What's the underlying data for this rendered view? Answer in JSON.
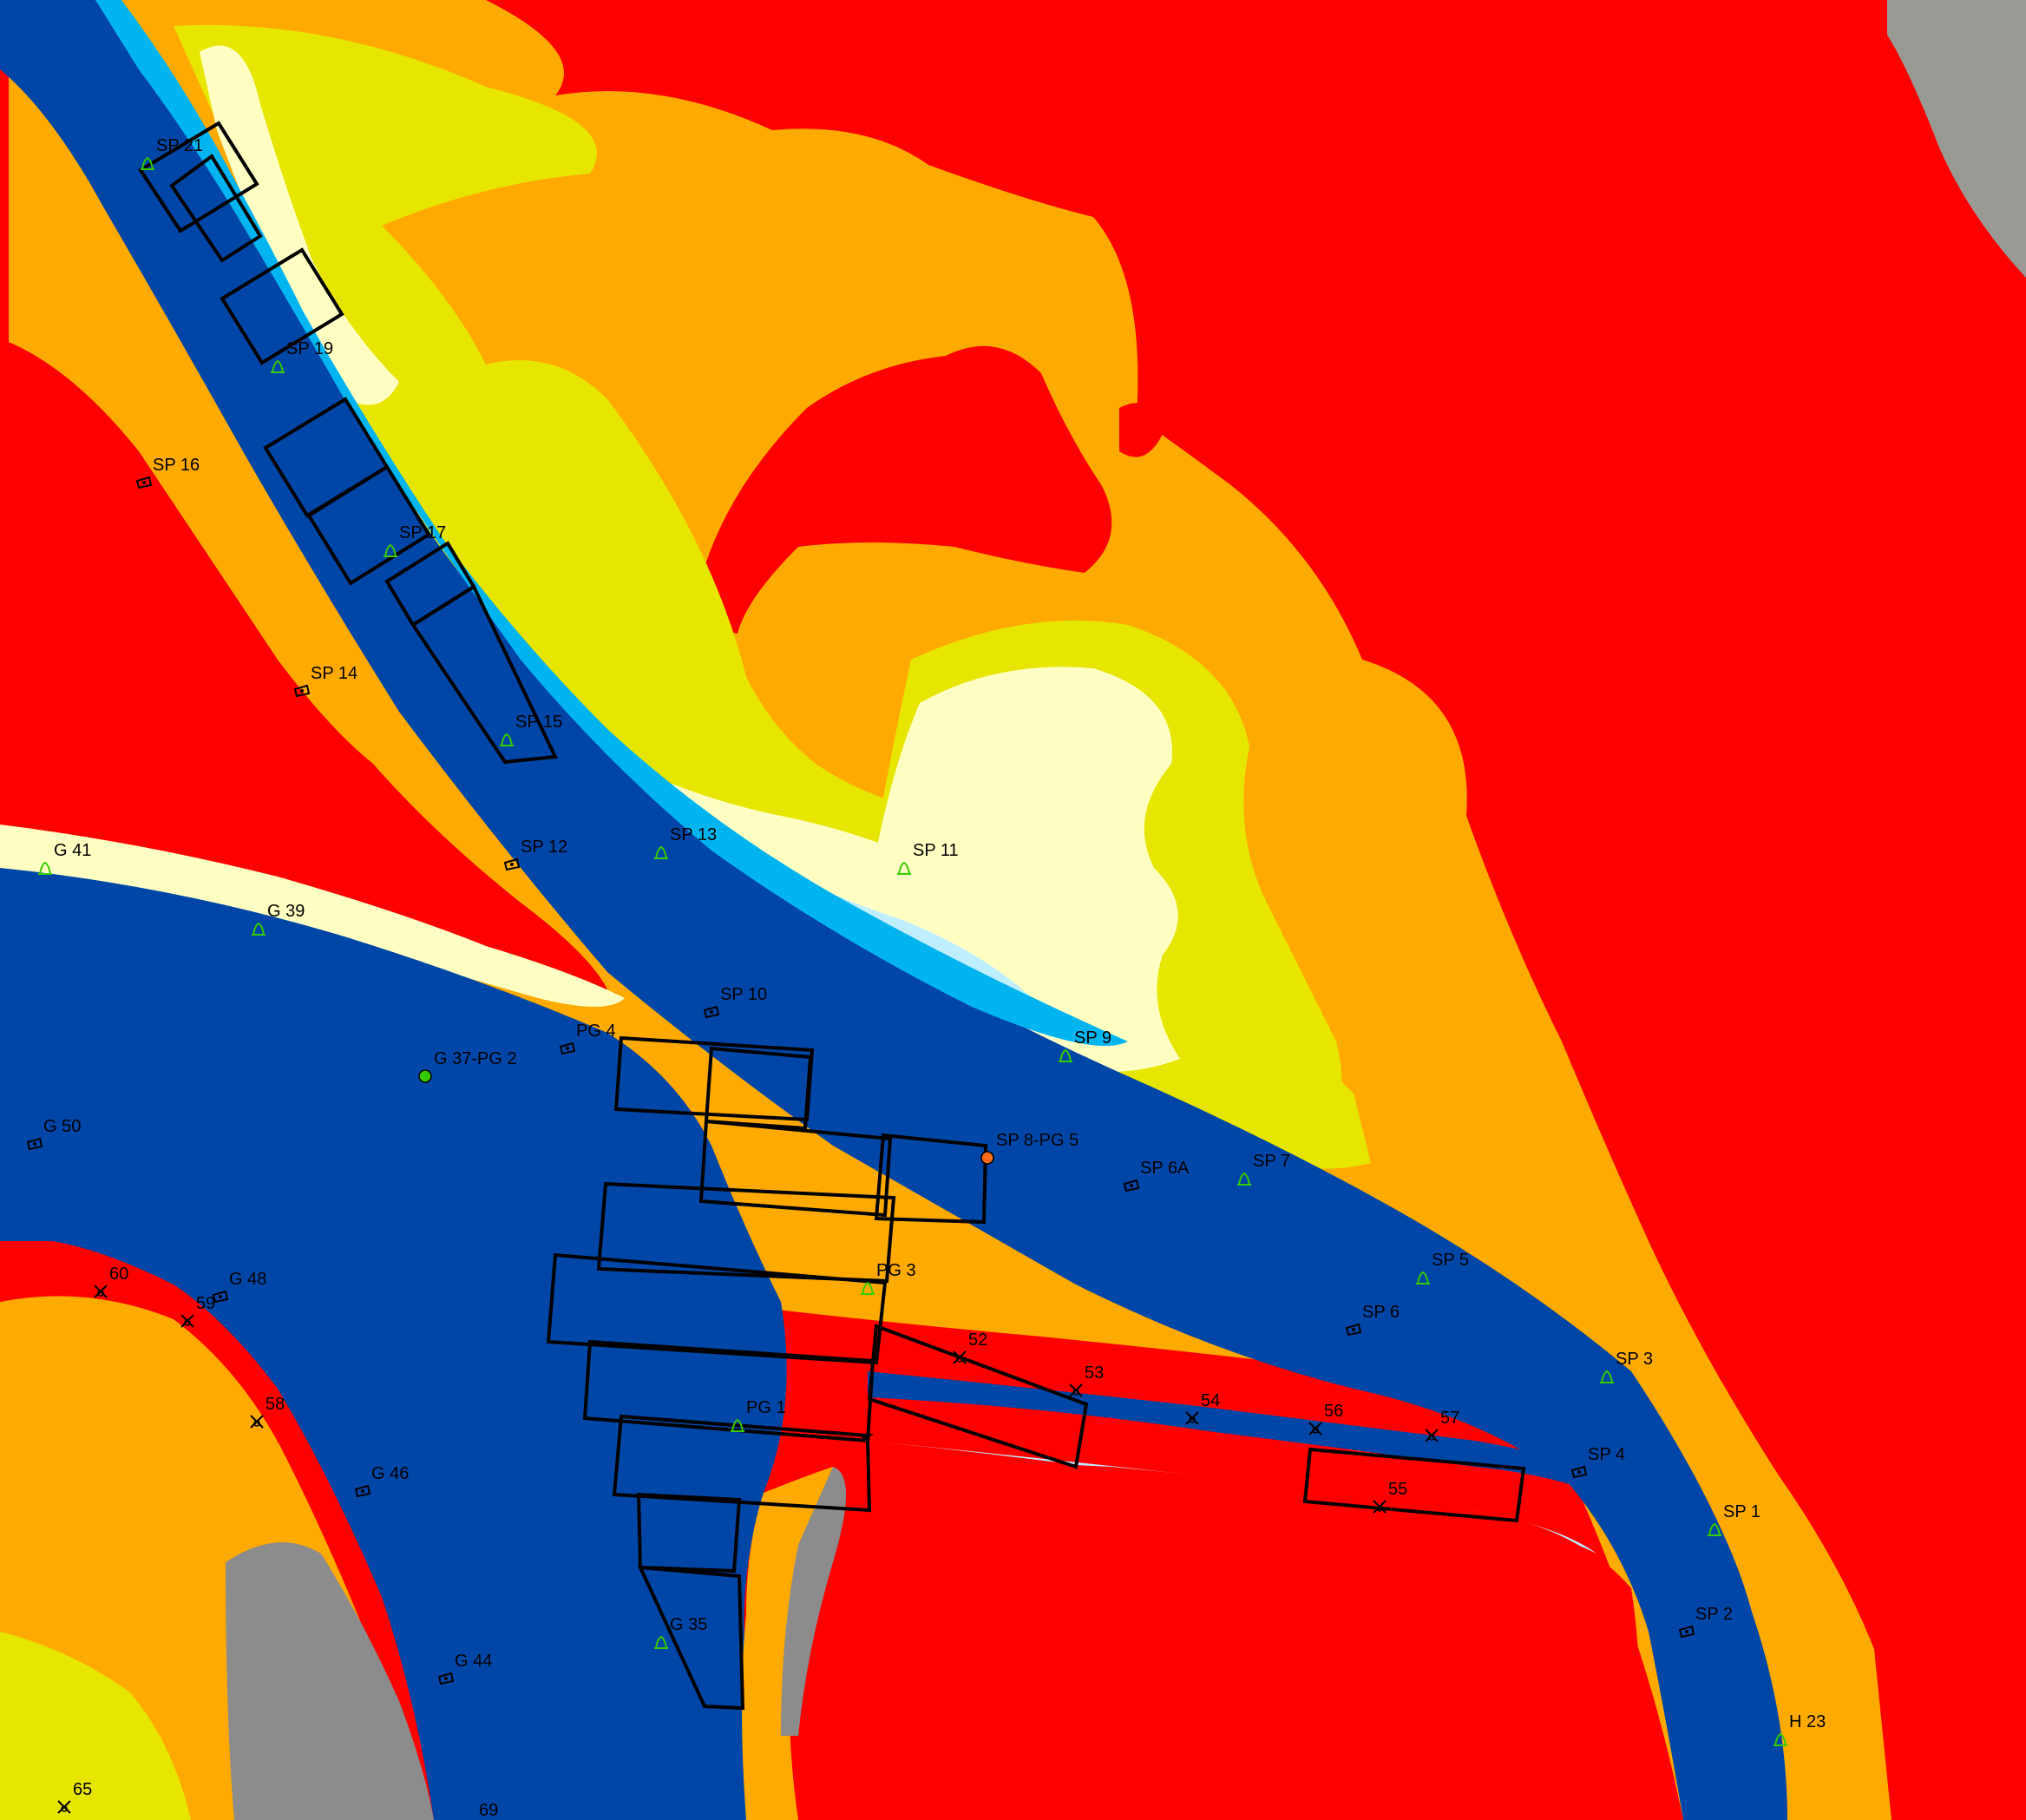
{
  "map": {
    "colors": {
      "deep_water": "#0046A6",
      "mid_water": "#00B4F0",
      "shallow_water": "#BFEFFF",
      "pale_flat": "#FFFFC4",
      "low_flat": "#E6E600",
      "mid_flat": "#FFAA00",
      "high_marsh": "#FF0000",
      "land_gray": "#8C8C8C",
      "marker_green": "#33CC00",
      "outline": "#000000"
    },
    "labels": [
      {
        "id": "sp21",
        "text": "SP 21",
        "icon": "green-bell-icon"
      },
      {
        "id": "sp19",
        "text": "SP 19",
        "icon": "green-bell-icon"
      },
      {
        "id": "sp16",
        "text": "SP 16",
        "icon": "black-boat-icon"
      },
      {
        "id": "sp17",
        "text": "SP 17",
        "icon": "green-bell-icon"
      },
      {
        "id": "sp14",
        "text": "SP 14",
        "icon": "black-boat-icon"
      },
      {
        "id": "sp15",
        "text": "SP 15",
        "icon": "green-bell-icon"
      },
      {
        "id": "sp13",
        "text": "SP 13",
        "icon": "green-bell-icon"
      },
      {
        "id": "sp12",
        "text": "SP 12",
        "icon": "black-boat-icon"
      },
      {
        "id": "sp11",
        "text": "SP 11",
        "icon": "green-bell-icon"
      },
      {
        "id": "g41",
        "text": "G 41",
        "icon": "green-bell-icon"
      },
      {
        "id": "g39",
        "text": "G 39",
        "icon": "green-bell-icon"
      },
      {
        "id": "sp10",
        "text": "SP 10",
        "icon": "black-boat-icon"
      },
      {
        "id": "pg4",
        "text": "PG 4",
        "icon": "black-boat-icon"
      },
      {
        "id": "sp9",
        "text": "SP 9",
        "icon": "green-bell-icon"
      },
      {
        "id": "g37",
        "text": "G 37-PG 2",
        "icon": "green-dot-icon"
      },
      {
        "id": "g50",
        "text": "G 50",
        "icon": "black-boat-icon"
      },
      {
        "id": "sp8",
        "text": "SP 8-PG 5",
        "icon": "orange-dot-icon"
      },
      {
        "id": "sp6a",
        "text": "SP 6A",
        "icon": "black-boat-icon"
      },
      {
        "id": "sp7",
        "text": "SP 7",
        "icon": "green-bell-icon"
      },
      {
        "id": "sp5",
        "text": "SP 5",
        "icon": "green-bell-icon"
      },
      {
        "id": "pg3",
        "text": "PG 3",
        "icon": "green-bell-icon"
      },
      {
        "id": "n60",
        "text": "60",
        "icon": "cross-icon"
      },
      {
        "id": "n59",
        "text": "59",
        "icon": "cross-icon"
      },
      {
        "id": "g48",
        "text": "G 48",
        "icon": "black-boat-icon"
      },
      {
        "id": "sp6",
        "text": "SP 6",
        "icon": "black-boat-icon"
      },
      {
        "id": "n52",
        "text": "52",
        "icon": "cross-icon"
      },
      {
        "id": "sp3",
        "text": "SP 3",
        "icon": "green-bell-icon"
      },
      {
        "id": "n53",
        "text": "53",
        "icon": "cross-icon"
      },
      {
        "id": "n58",
        "text": "58",
        "icon": "cross-icon"
      },
      {
        "id": "n54",
        "text": "54",
        "icon": "cross-icon"
      },
      {
        "id": "n56",
        "text": "56",
        "icon": "cross-icon"
      },
      {
        "id": "n57",
        "text": "57",
        "icon": "cross-icon"
      },
      {
        "id": "pg1",
        "text": "PG 1",
        "icon": "green-bell-icon"
      },
      {
        "id": "sp4",
        "text": "SP 4",
        "icon": "black-boat-icon"
      },
      {
        "id": "g46",
        "text": "G 46",
        "icon": "black-boat-icon"
      },
      {
        "id": "n55",
        "text": "55",
        "icon": "cross-icon"
      },
      {
        "id": "sp1",
        "text": "SP 1",
        "icon": "green-bell-icon"
      },
      {
        "id": "sp2",
        "text": "SP 2",
        "icon": "black-boat-icon"
      },
      {
        "id": "g35",
        "text": "G 35",
        "icon": "green-bell-icon"
      },
      {
        "id": "g44",
        "text": "G 44",
        "icon": "black-boat-icon"
      },
      {
        "id": "h23",
        "text": "H 23",
        "icon": "green-bell-icon"
      },
      {
        "id": "n65",
        "text": "65",
        "icon": "cross-icon"
      },
      {
        "id": "n69",
        "text": "69",
        "icon": "cross-icon"
      }
    ]
  }
}
